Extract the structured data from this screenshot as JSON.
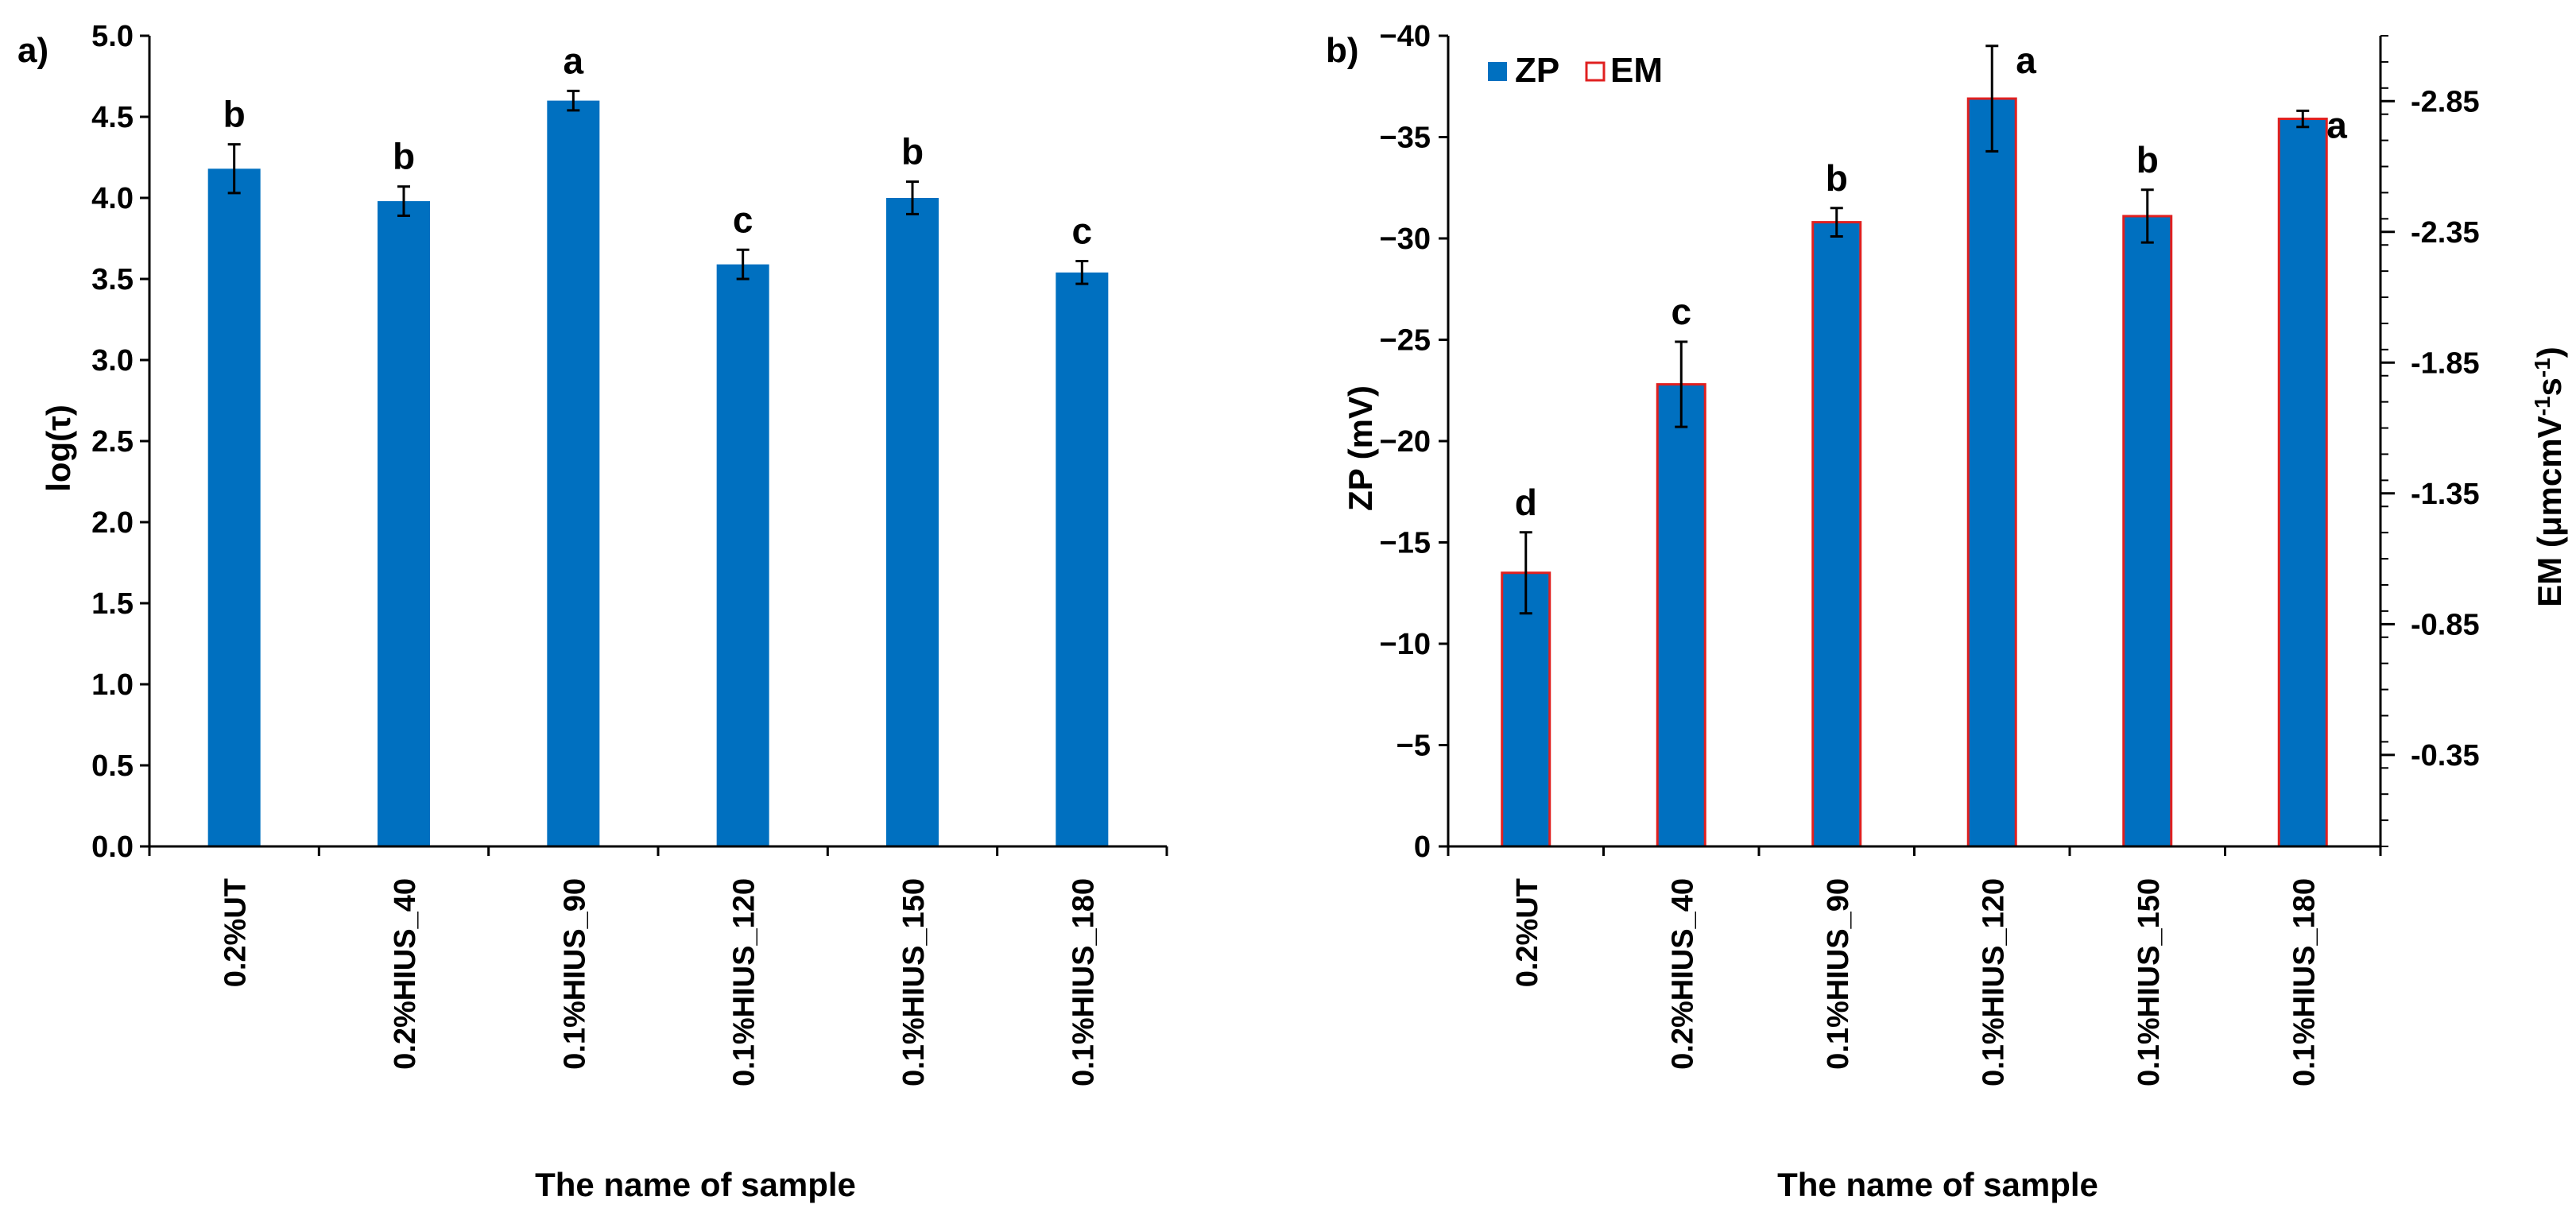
{
  "colors": {
    "bar": "#0070c0",
    "edge_red": "#e02020",
    "axis": "#000000"
  },
  "chart_data": [
    {
      "type": "bar",
      "panel_label": "a)",
      "categories": [
        "0.2%UT",
        "0.2%HIUS_40",
        "0.1%HIUS_90",
        "0.1%HIUS_120",
        "0.1%HIUS_150",
        "0.1%HIUS_180"
      ],
      "values": [
        4.18,
        3.98,
        4.6,
        3.59,
        4.0,
        3.54
      ],
      "errors": [
        0.15,
        0.09,
        0.06,
        0.09,
        0.1,
        0.07
      ],
      "letters": [
        "b",
        "b",
        "a",
        "c",
        "b",
        "c"
      ],
      "xlabel": "The name of sample",
      "ylabel": "log(τ)",
      "ylim": [
        0.0,
        5.0
      ],
      "yticks": [
        "0.0",
        "0.5",
        "1.0",
        "1.5",
        "2.0",
        "2.5",
        "3.0",
        "3.5",
        "4.0",
        "4.5",
        "5.0"
      ]
    },
    {
      "type": "bar",
      "panel_label": "b)",
      "categories": [
        "0.2%UT",
        "0.2%HIUS_40",
        "0.1%HIUS_90",
        "0.1%HIUS_120",
        "0.1%HIUS_150",
        "0.1%HIUS_180"
      ],
      "series": [
        {
          "name": "ZP",
          "values": [
            -13.5,
            -22.8,
            -30.8,
            -36.9,
            -31.1,
            -35.9
          ],
          "errors": [
            2.0,
            2.1,
            0.7,
            2.6,
            1.3,
            0.4
          ]
        },
        {
          "name": "EM",
          "values": [
            -1.06,
            -1.79,
            -2.41,
            -2.89,
            -2.44,
            -2.81
          ]
        }
      ],
      "letters": [
        "d",
        "c",
        "b",
        "a",
        "b",
        "a"
      ],
      "xlabel": "The name of sample",
      "ylabel": "ZP (mV)",
      "ylabel_right": "EM (μmcmV-1s-1)",
      "ylim": [
        0,
        -40
      ],
      "yticks": [
        "0",
        "−5",
        "−10",
        "−15",
        "−20",
        "−25",
        "−30",
        "−35",
        "−40"
      ],
      "ylim_right": [
        0.0,
        -3.1
      ],
      "yticks_right": [
        "-0.35",
        "-0.85",
        "-1.35",
        "-1.85",
        "-2.35",
        "-2.85"
      ],
      "yticks_right_values": [
        -0.35,
        -0.85,
        -1.35,
        -1.85,
        -2.35,
        -2.85
      ],
      "legend": [
        "ZP",
        "EM"
      ]
    }
  ]
}
